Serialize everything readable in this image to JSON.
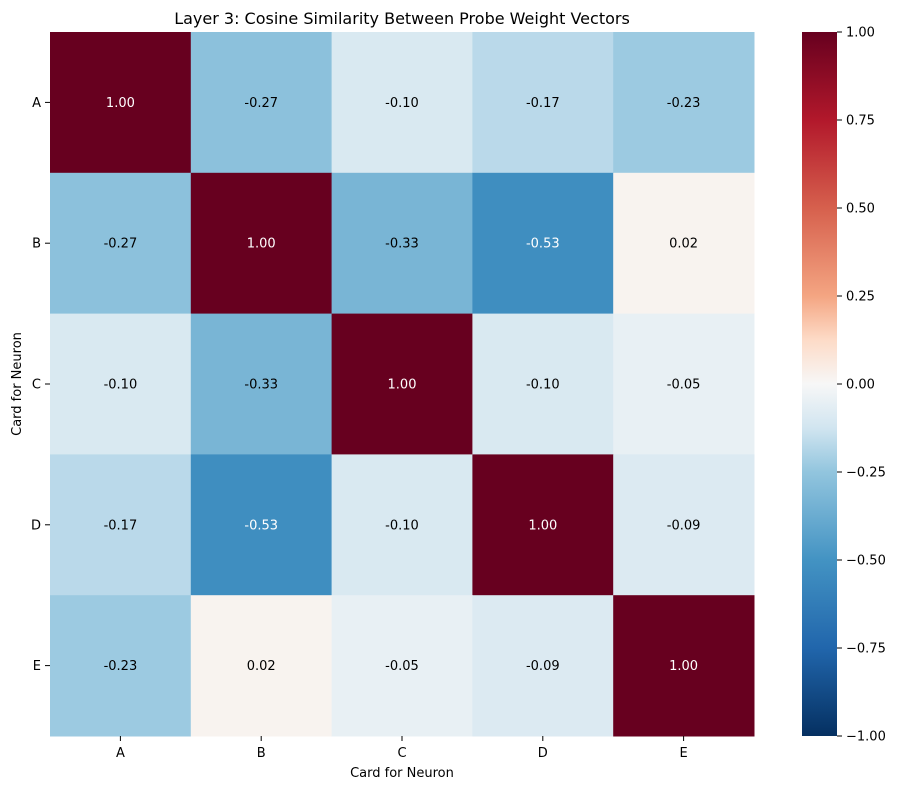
{
  "chart_data": {
    "type": "heatmap",
    "title": "Layer 3: Cosine Similarity Between Probe Weight Vectors",
    "xlabel": "Card for Neuron",
    "ylabel": "Card for Neuron",
    "x_categories": [
      "A",
      "B",
      "C",
      "D",
      "E"
    ],
    "y_categories": [
      "A",
      "B",
      "C",
      "D",
      "E"
    ],
    "values": [
      [
        1.0,
        -0.27,
        -0.1,
        -0.17,
        -0.23
      ],
      [
        -0.27,
        1.0,
        -0.33,
        -0.53,
        0.02
      ],
      [
        -0.1,
        -0.33,
        1.0,
        -0.1,
        -0.05
      ],
      [
        -0.17,
        -0.53,
        -0.1,
        1.0,
        -0.09
      ],
      [
        -0.23,
        0.02,
        -0.05,
        -0.09,
        1.0
      ]
    ],
    "value_format": "0.00",
    "colormap": "RdBu_r",
    "colorbar": {
      "range": [
        -1.0,
        1.0
      ],
      "ticks": [
        1.0,
        0.75,
        0.5,
        0.25,
        0.0,
        -0.25,
        -0.5,
        -0.75,
        -1.0
      ],
      "tick_labels": [
        "1.00",
        "0.75",
        "0.50",
        "0.25",
        "0.00",
        "−0.25",
        "−0.50",
        "−0.75",
        "−1.00"
      ]
    },
    "grid": false,
    "legend": "colorbar-right"
  }
}
